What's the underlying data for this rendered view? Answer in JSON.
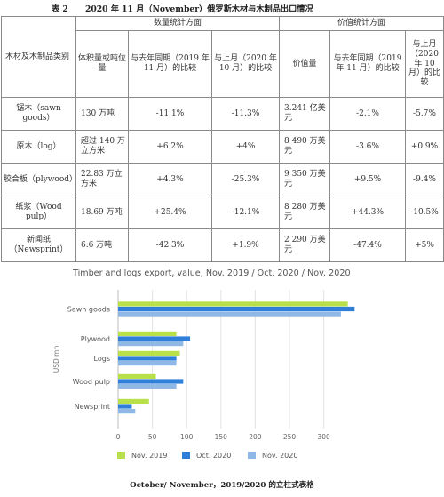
{
  "table_number": "表 2",
  "table_title": "2020 年 11 月（November）俄罗斯木材与木制品出口情况",
  "table": {
    "row_header": "木材及木制品类别",
    "group_quantity": "数量统计方面",
    "group_value": "价值统计方面",
    "sub_headers": [
      "体积量或吨位量",
      "与去年同期（2019 年 11 月）的比较",
      "与上月（2020 年 10 月）的比较",
      "价值量",
      "与去年同期（2019 年 11 月）的比较",
      "与上月（2020 年 10 月）的比较"
    ],
    "rows": [
      {
        "category": "锯木（sawn goods）",
        "volume": "130 万吨",
        "qty_yoy": "-11.1%",
        "qty_mom": "-11.3%",
        "value": "3.241 亿美元",
        "val_yoy": "-2.1%",
        "val_mom": "-5.7%"
      },
      {
        "category": "原木（log）",
        "volume": "超过 140 万立方米",
        "qty_yoy": "+6.2%",
        "qty_mom": "+4%",
        "value": "8 490 万美元",
        "val_yoy": "-3.6%",
        "val_mom": "+0.9%"
      },
      {
        "category": "胶合板（plywood）",
        "volume": "22.83 万立方米",
        "qty_yoy": "+4.3%",
        "qty_mom": "-25.3%",
        "value": "9 350 万美元",
        "val_yoy": "+9.5%",
        "val_mom": "-9.4%"
      },
      {
        "category": "纸浆（Wood pulp）",
        "volume": "18.69 万吨",
        "qty_yoy": "+25.4%",
        "qty_mom": "-12.1%",
        "value": "8 280 万美元",
        "val_yoy": "+44.3%",
        "val_mom": "-10.5%"
      },
      {
        "category": "新闻纸（Newsprint）",
        "volume": "6.6 万吨",
        "qty_yoy": "-42.3%",
        "qty_mom": "+1.9%",
        "value": "2 290 万美元",
        "val_yoy": "-47.4%",
        "val_mom": "+5%"
      }
    ]
  },
  "chart_data": {
    "type": "bar",
    "orientation": "horizontal",
    "title": "Timber and logs export, value, Nov. 2019 / Oct. 2020 / Nov. 2020",
    "ylabel": "USD mn",
    "xlabel": "",
    "categories": [
      "Sawn goods",
      "Plywood",
      "Logs",
      "Wood pulp",
      "Newsprint"
    ],
    "series": [
      {
        "name": "Nov. 2019",
        "color": "#b8e04a",
        "values": [
          335,
          85,
          90,
          55,
          45
        ]
      },
      {
        "name": "Oct. 2020",
        "color": "#2f7fd8",
        "values": [
          345,
          105,
          85,
          95,
          20
        ]
      },
      {
        "name": "Nov. 2020",
        "color": "#8fb8e6",
        "values": [
          325,
          95,
          85,
          85,
          25
        ]
      }
    ],
    "x_ticks": [
      "0",
      "50",
      "100",
      "150",
      "200",
      "250",
      "300"
    ],
    "xlim": [
      0,
      350
    ],
    "grid": true,
    "legend_position": "bottom"
  },
  "bottom_caption": "October/ November，2019/2020 的立柱式表格"
}
